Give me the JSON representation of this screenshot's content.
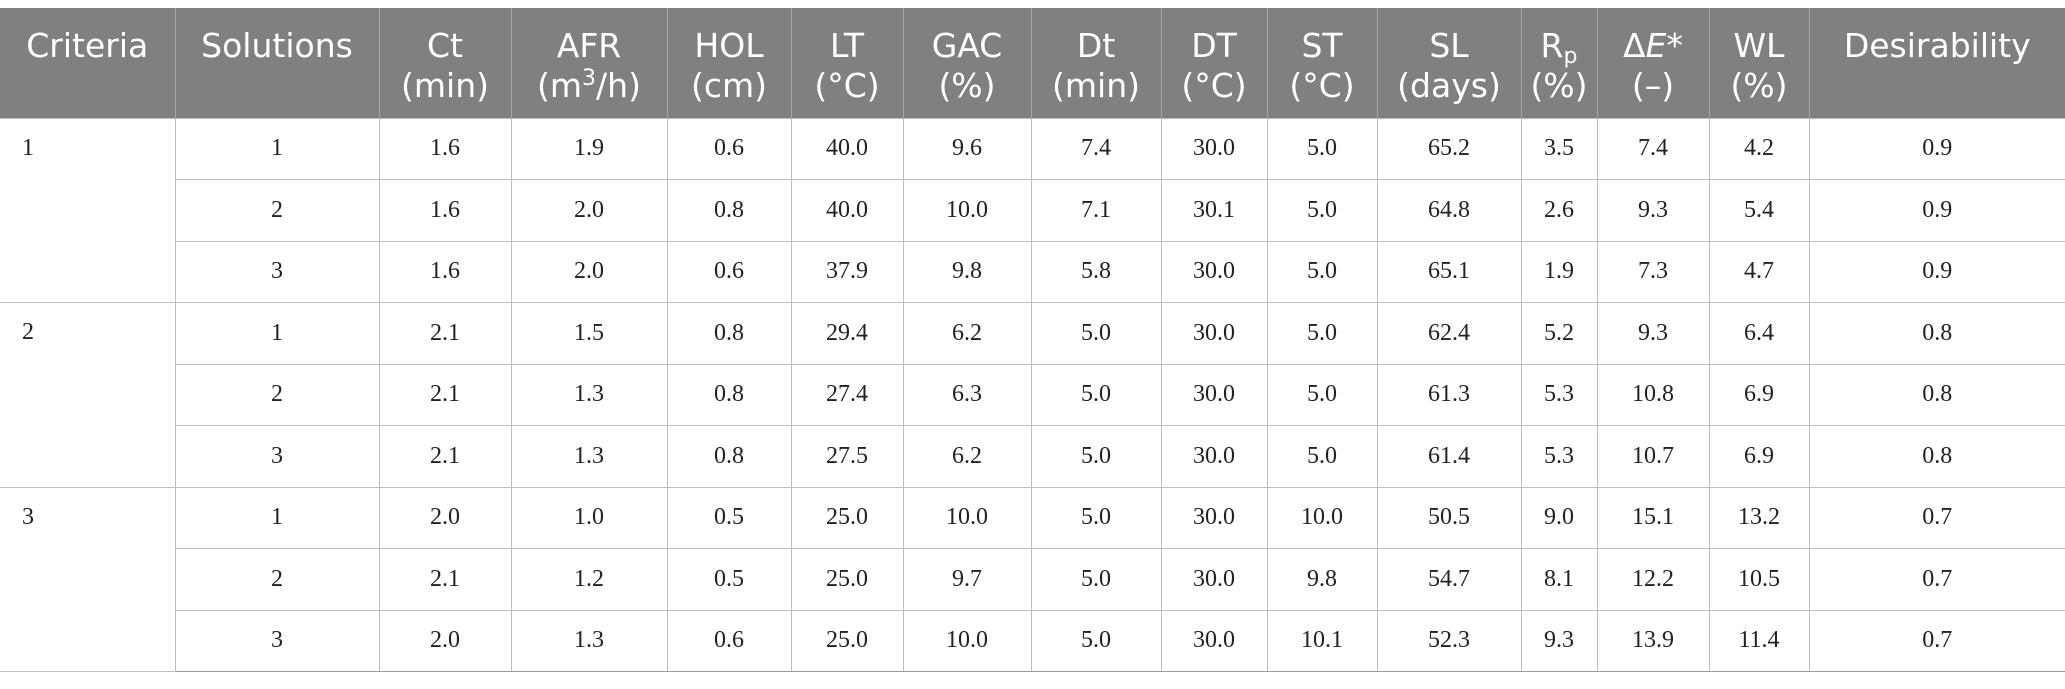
{
  "table": {
    "headers": [
      {
        "line1": "Criteria",
        "line2": ""
      },
      {
        "line1": "Solutions",
        "line2": ""
      },
      {
        "line1": "Ct",
        "line2": "(min)"
      },
      {
        "line1": "AFR",
        "line2_pre": "(m",
        "line2_sup": "3",
        "line2_post": "/h)"
      },
      {
        "line1": "HOL",
        "line2": "(cm)"
      },
      {
        "line1": "LT",
        "line2": "(°C)"
      },
      {
        "line1": "GAC",
        "line2": "(%)"
      },
      {
        "line1": "Dt",
        "line2": "(min)"
      },
      {
        "line1": "DT",
        "line2": "(°C)"
      },
      {
        "line1": "ST",
        "line2": "(°C)"
      },
      {
        "line1": "SL",
        "line2": "(days)"
      },
      {
        "line1_main": "R",
        "line1_sub": "p",
        "line2": "(%)"
      },
      {
        "line1_pre": "Δ",
        "line1_italic": "E",
        "line1_post": "*",
        "line2": "(–)"
      },
      {
        "line1": "WL",
        "line2": "(%)"
      },
      {
        "line1": "Desirability",
        "line2": ""
      }
    ],
    "groups": [
      {
        "criteria": "1",
        "rows": [
          [
            "1",
            "1.6",
            "1.9",
            "0.6",
            "40.0",
            "9.6",
            "7.4",
            "30.0",
            "5.0",
            "65.2",
            "3.5",
            "7.4",
            "4.2",
            "0.9"
          ],
          [
            "2",
            "1.6",
            "2.0",
            "0.8",
            "40.0",
            "10.0",
            "7.1",
            "30.1",
            "5.0",
            "64.8",
            "2.6",
            "9.3",
            "5.4",
            "0.9"
          ],
          [
            "3",
            "1.6",
            "2.0",
            "0.6",
            "37.9",
            "9.8",
            "5.8",
            "30.0",
            "5.0",
            "65.1",
            "1.9",
            "7.3",
            "4.7",
            "0.9"
          ]
        ]
      },
      {
        "criteria": "2",
        "rows": [
          [
            "1",
            "2.1",
            "1.5",
            "0.8",
            "29.4",
            "6.2",
            "5.0",
            "30.0",
            "5.0",
            "62.4",
            "5.2",
            "9.3",
            "6.4",
            "0.8"
          ],
          [
            "2",
            "2.1",
            "1.3",
            "0.8",
            "27.4",
            "6.3",
            "5.0",
            "30.0",
            "5.0",
            "61.3",
            "5.3",
            "10.8",
            "6.9",
            "0.8"
          ],
          [
            "3",
            "2.1",
            "1.3",
            "0.8",
            "27.5",
            "6.2",
            "5.0",
            "30.0",
            "5.0",
            "61.4",
            "5.3",
            "10.7",
            "6.9",
            "0.8"
          ]
        ]
      },
      {
        "criteria": "3",
        "rows": [
          [
            "1",
            "2.0",
            "1.0",
            "0.5",
            "25.0",
            "10.0",
            "5.0",
            "30.0",
            "10.0",
            "50.5",
            "9.0",
            "15.1",
            "13.2",
            "0.7"
          ],
          [
            "2",
            "2.1",
            "1.2",
            "0.5",
            "25.0",
            "9.7",
            "5.0",
            "30.0",
            "9.8",
            "54.7",
            "8.1",
            "12.2",
            "10.5",
            "0.7"
          ],
          [
            "3",
            "2.0",
            "1.3",
            "0.6",
            "25.0",
            "10.0",
            "5.0",
            "30.0",
            "10.1",
            "52.3",
            "9.3",
            "13.9",
            "11.4",
            "0.7"
          ]
        ]
      }
    ]
  },
  "colors": {
    "header_bg": "#808080",
    "header_text": "#ffffff",
    "grid": "#bdbdbd"
  }
}
